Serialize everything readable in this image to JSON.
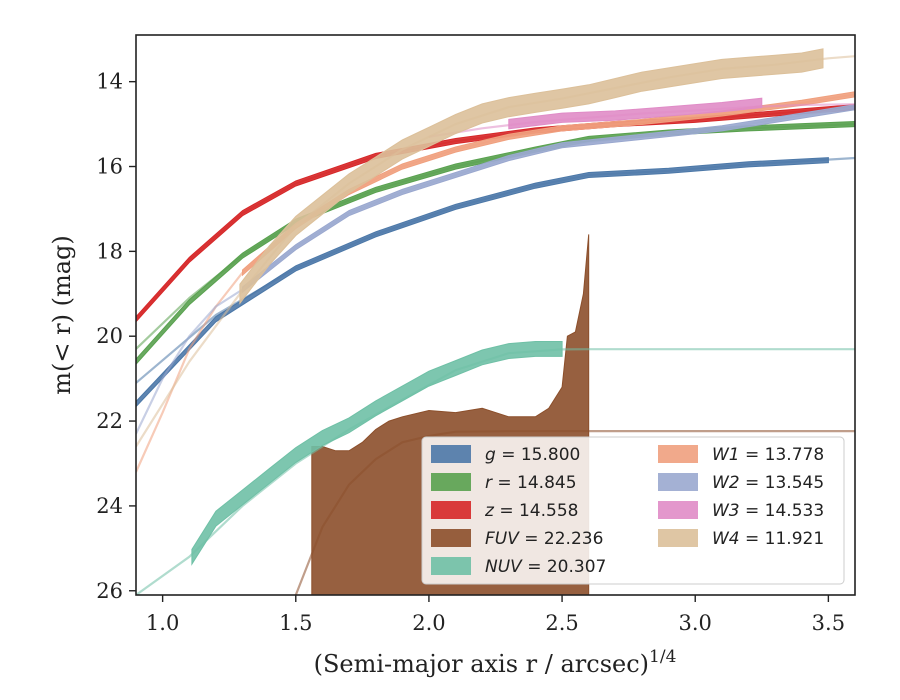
{
  "chart_data": {
    "type": "area",
    "xlabel": "(Semi-major axis r / arcsec)",
    "xlabel_sup": "1/4",
    "ylabel": "m(< r) (mag)",
    "xlim": [
      0.9,
      3.6
    ],
    "ylim": [
      26.1,
      12.9
    ],
    "y_inverted": true,
    "grid": false,
    "legend_position": "lower-right",
    "xticks": [
      1.0,
      1.5,
      2.0,
      2.5,
      3.0,
      3.5
    ],
    "xtick_labels": [
      "1.0",
      "1.5",
      "2.0",
      "2.5",
      "3.0",
      "3.5"
    ],
    "yticks": [
      14,
      16,
      18,
      20,
      22,
      24,
      26
    ],
    "ytick_labels": [
      "14",
      "16",
      "18",
      "20",
      "22",
      "24",
      "26"
    ],
    "series": [
      {
        "name": "g = 15.800",
        "color": "#4c78a8",
        "band_x": [
          0.9,
          1.2,
          1.5,
          1.8,
          2.1,
          2.4,
          2.6,
          2.9,
          3.2,
          3.5
        ],
        "band_y": [
          21.6,
          19.6,
          18.4,
          17.6,
          16.95,
          16.45,
          16.2,
          16.1,
          15.95,
          15.85
        ],
        "band_width": 0.12,
        "line_x": [
          0.9,
          1.2,
          1.5,
          1.8,
          2.1,
          2.4,
          2.6,
          2.9,
          3.2,
          3.6
        ],
        "line_y": [
          21.1,
          19.5,
          18.4,
          17.6,
          16.95,
          16.45,
          16.2,
          16.1,
          15.95,
          15.8
        ]
      },
      {
        "name": "r = 14.845",
        "color": "#59a14f",
        "band_x": [
          0.9,
          1.1,
          1.3,
          1.5,
          1.8,
          2.1,
          2.4,
          2.6,
          2.9,
          3.2,
          3.6
        ],
        "band_y": [
          20.6,
          19.2,
          18.1,
          17.3,
          16.55,
          16.0,
          15.6,
          15.35,
          15.2,
          15.1,
          15.0
        ],
        "band_width": 0.12,
        "line_x": [
          0.9,
          1.1,
          1.3,
          1.5,
          1.8,
          2.1,
          2.4,
          2.6,
          2.9,
          3.2,
          3.6
        ],
        "line_y": [
          20.3,
          19.1,
          18.1,
          17.3,
          16.55,
          16.0,
          15.6,
          15.35,
          15.2,
          15.1,
          15.0
        ]
      },
      {
        "name": "z = 14.558",
        "color": "#d62728",
        "band_x": [
          0.9,
          1.1,
          1.3,
          1.5,
          1.8,
          2.1,
          2.4,
          2.7,
          3.0,
          3.3,
          3.6
        ],
        "band_y": [
          19.6,
          18.2,
          17.1,
          16.4,
          15.75,
          15.4,
          15.15,
          15.0,
          14.9,
          14.75,
          14.6
        ],
        "band_width": 0.12,
        "line_x": [
          0.9,
          1.1,
          1.3,
          1.5,
          1.8,
          2.1,
          2.4,
          2.7,
          3.0,
          3.3,
          3.6
        ],
        "line_y": [
          19.6,
          18.2,
          17.1,
          16.4,
          15.75,
          15.4,
          15.15,
          15.0,
          14.9,
          14.75,
          14.6
        ]
      },
      {
        "name": "FUV = 22.236",
        "color": "#8c4f2b",
        "band_x": [
          1.56,
          1.6,
          1.65,
          1.7,
          1.75,
          1.8,
          1.85,
          1.9,
          2.0,
          2.1,
          2.2,
          2.3,
          2.4,
          2.45,
          2.5,
          2.52,
          2.55,
          2.58,
          2.6
        ],
        "band_top": [
          22.6,
          22.6,
          22.7,
          22.7,
          22.5,
          22.2,
          22.0,
          21.9,
          21.75,
          21.8,
          21.7,
          21.9,
          21.9,
          21.7,
          21.2,
          20.0,
          19.9,
          19.0,
          17.6
        ],
        "band_bottom": [
          26.1,
          26.1,
          26.1,
          26.1,
          26.1,
          26.1,
          26.1,
          26.1,
          26.1,
          26.1,
          26.1,
          26.1,
          26.1,
          26.1,
          26.1,
          26.1,
          26.1,
          26.1,
          26.1
        ],
        "line_x": [
          1.5,
          1.6,
          1.7,
          1.8,
          1.9,
          2.0,
          2.1,
          2.3,
          2.5,
          2.6,
          3.0,
          3.6
        ],
        "line_y": [
          26.1,
          24.5,
          23.5,
          22.9,
          22.5,
          22.35,
          22.25,
          22.24,
          22.237,
          22.236,
          22.236,
          22.236
        ]
      },
      {
        "name": "NUV = 20.307",
        "color": "#6fc0a6",
        "band_x": [
          1.11,
          1.2,
          1.3,
          1.4,
          1.5,
          1.6,
          1.7,
          1.8,
          1.9,
          2.0,
          2.1,
          2.2,
          2.3,
          2.4,
          2.5
        ],
        "band_y": [
          25.2,
          24.3,
          23.8,
          23.3,
          22.8,
          22.4,
          22.1,
          21.7,
          21.35,
          21.0,
          20.75,
          20.5,
          20.35,
          20.3,
          20.3
        ],
        "band_width": 0.35,
        "line_x": [
          0.9,
          1.1,
          1.3,
          1.5,
          1.7,
          1.9,
          2.1,
          2.3,
          2.5,
          2.6,
          3.0,
          3.6
        ],
        "line_y": [
          26.1,
          25.2,
          24.0,
          23.0,
          22.2,
          21.5,
          20.8,
          20.4,
          20.31,
          20.307,
          20.307,
          20.307
        ]
      },
      {
        "name": "W1 = 13.778",
        "color": "#f0a07e",
        "band_x": [
          1.3,
          1.5,
          1.7,
          1.9,
          2.1,
          2.3,
          2.5,
          2.8,
          3.1,
          3.4,
          3.6
        ],
        "band_y": [
          18.5,
          17.4,
          16.6,
          16.0,
          15.6,
          15.3,
          15.1,
          14.95,
          14.75,
          14.5,
          14.3
        ],
        "band_width": 0.12,
        "line_x": [
          0.9,
          1.0,
          1.1,
          1.2,
          1.3,
          1.5,
          1.7,
          1.9,
          2.1,
          2.3,
          2.5,
          2.8,
          3.1,
          3.4,
          3.6
        ],
        "line_y": [
          23.2,
          21.8,
          20.3,
          19.3,
          18.5,
          17.4,
          16.6,
          16.0,
          15.6,
          15.3,
          15.1,
          14.95,
          14.75,
          14.5,
          14.3
        ]
      },
      {
        "name": "W2 = 13.545",
        "color": "#9aa8cf",
        "band_x": [
          1.3,
          1.5,
          1.7,
          1.9,
          2.1,
          2.3,
          2.5,
          2.8,
          3.1,
          3.4,
          3.6
        ],
        "band_y": [
          18.9,
          17.9,
          17.1,
          16.6,
          16.2,
          15.8,
          15.5,
          15.3,
          15.1,
          14.8,
          14.6
        ],
        "band_width": 0.12,
        "line_x": [
          0.9,
          1.0,
          1.1,
          1.2,
          1.3,
          1.5,
          1.7,
          1.9,
          2.1,
          2.3,
          2.5,
          2.8,
          3.1,
          3.4,
          3.6
        ],
        "line_y": [
          22.3,
          21.0,
          20.0,
          19.3,
          18.9,
          17.9,
          17.1,
          16.6,
          16.2,
          15.8,
          15.5,
          15.3,
          15.1,
          14.8,
          14.6
        ]
      },
      {
        "name": "W3 = 14.533",
        "color": "#e08cc7",
        "band_x": [
          2.3,
          2.5,
          2.7,
          2.9,
          3.1,
          3.25
        ],
        "band_y": [
          15.0,
          14.85,
          14.8,
          14.7,
          14.6,
          14.5
        ],
        "band_width": 0.22,
        "line_x": [
          2.0,
          2.2,
          2.4,
          2.6,
          2.8,
          3.0,
          3.2,
          3.4,
          3.6
        ],
        "line_y": [
          15.3,
          15.1,
          14.95,
          14.85,
          14.75,
          14.68,
          14.6,
          14.55,
          14.53
        ]
      },
      {
        "name": "W4 = 11.921",
        "color": "#dcc09a",
        "band_x": [
          1.29,
          1.4,
          1.5,
          1.6,
          1.7,
          1.8,
          1.9,
          2.0,
          2.1,
          2.2,
          2.3,
          2.4,
          2.5,
          2.6,
          2.7,
          2.8,
          2.9,
          3.0,
          3.1,
          3.2,
          3.3,
          3.4,
          3.48
        ],
        "band_y": [
          19.0,
          18.1,
          17.4,
          16.9,
          16.4,
          16.0,
          15.6,
          15.3,
          15.0,
          14.75,
          14.6,
          14.5,
          14.4,
          14.3,
          14.15,
          14.0,
          13.9,
          13.8,
          13.7,
          13.65,
          13.6,
          13.55,
          13.45
        ],
        "band_width": 0.45,
        "line_x": [
          0.9,
          1.1,
          1.29,
          1.5,
          1.7,
          1.9,
          2.1,
          2.3,
          2.5,
          2.7,
          2.9,
          3.1,
          3.3,
          3.5,
          3.6
        ],
        "line_y": [
          22.6,
          20.6,
          19.0,
          17.4,
          16.4,
          15.6,
          15.0,
          14.6,
          14.4,
          14.15,
          13.9,
          13.7,
          13.6,
          13.45,
          13.4
        ]
      }
    ],
    "legend": {
      "columns": [
        [
          "g = 15.800",
          "r = 14.845",
          "z = 14.558",
          "FUV = 22.236",
          "NUV = 20.307"
        ],
        [
          "W1 = 13.778",
          "W2 = 13.545",
          "W3 = 14.533",
          "W4 = 11.921"
        ]
      ]
    }
  }
}
